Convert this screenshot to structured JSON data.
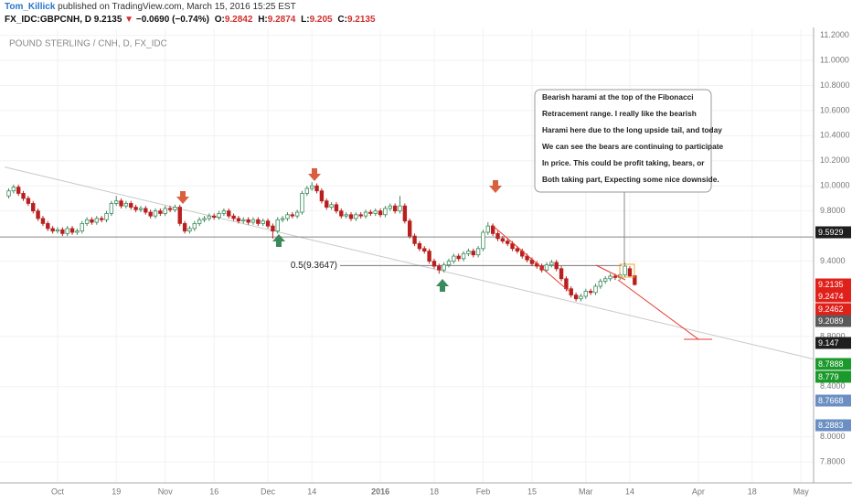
{
  "header": {
    "author": "Tom_Killick",
    "published": "published on TradingView.com, March 15, 2016 15:25 EST",
    "symbol": "FX_IDC:GBPCNH, D",
    "change": "−0.0690 (−0.74%)",
    "ohlc_labels": [
      "O:",
      "H:",
      "L:",
      "C:"
    ]
  },
  "chart_data": {
    "type": "candlestick",
    "title": "POUND STERLING / CNH, D, FX_IDC",
    "up_color": "#3c8a5c",
    "down_color": "#b8201f",
    "grid": true,
    "ylim": [
      7.633,
      11.248
    ],
    "yticks": [
      {
        "value": 11.2,
        "label": "11.2000"
      },
      {
        "value": 11.0,
        "label": "11.0000"
      },
      {
        "value": 10.8,
        "label": "10.8000"
      },
      {
        "value": 10.6,
        "label": "10.6000"
      },
      {
        "value": 10.4,
        "label": "10.4000"
      },
      {
        "value": 10.2,
        "label": "10.2000"
      },
      {
        "value": 10.0,
        "label": "10.0000"
      },
      {
        "value": 9.8,
        "label": "9.8000"
      },
      {
        "value": 9.4,
        "label": "9.4000"
      },
      {
        "value": 8.8,
        "label": "8.8000"
      },
      {
        "value": 8.4,
        "label": "8.4000"
      },
      {
        "value": 8.0,
        "label": "8.0000"
      },
      {
        "value": 7.8,
        "label": "7.8000"
      }
    ],
    "categories": [
      null,
      null,
      null,
      null,
      null,
      null,
      null,
      null,
      null,
      null,
      "Oct",
      null,
      null,
      null,
      null,
      null,
      null,
      null,
      null,
      null,
      null,
      null,
      "19",
      null,
      null,
      null,
      null,
      null,
      null,
      null,
      null,
      null,
      "Nov",
      null,
      null,
      null,
      null,
      null,
      null,
      null,
      null,
      null,
      "16",
      null,
      null,
      null,
      null,
      null,
      null,
      null,
      null,
      null,
      null,
      "Dec",
      null,
      null,
      null,
      null,
      null,
      null,
      null,
      null,
      "14",
      null,
      null,
      null,
      null,
      null,
      null,
      null,
      null,
      null,
      null,
      null,
      null,
      null,
      "2016",
      null,
      null,
      null,
      null,
      null,
      null,
      null,
      null,
      null,
      null,
      "18",
      null,
      null,
      null,
      null,
      null,
      null,
      null,
      null,
      null,
      "Feb",
      null,
      null,
      null,
      null,
      null,
      null,
      null,
      null,
      null,
      "15",
      null,
      null,
      null,
      null,
      null,
      null,
      null,
      null,
      null,
      null,
      "Mar",
      null,
      null,
      null,
      null,
      null,
      null,
      null,
      null,
      "14",
      null,
      null,
      null,
      null,
      null,
      null,
      null,
      null,
      null,
      null,
      null,
      null,
      null,
      "Apr",
      null,
      null,
      null,
      null,
      null,
      null,
      null,
      null,
      null,
      null,
      "18",
      null,
      null,
      null,
      null,
      null,
      null,
      null,
      null,
      null,
      "May",
      null,
      null
    ],
    "open": [
      9.92,
      9.96,
      9.99,
      9.94,
      9.9,
      9.86,
      9.8,
      9.74,
      9.7,
      9.66,
      9.64,
      9.65,
      9.62,
      9.66,
      9.63,
      9.64,
      9.7,
      9.73,
      9.71,
      9.74,
      9.73,
      9.78,
      9.86,
      9.88,
      9.84,
      9.86,
      9.83,
      9.81,
      9.82,
      9.79,
      9.76,
      9.8,
      9.78,
      9.82,
      9.81,
      9.83,
      9.7,
      9.64,
      9.66,
      9.7,
      9.73,
      9.74,
      9.76,
      9.75,
      9.78,
      9.8,
      9.76,
      9.74,
      9.72,
      9.73,
      9.71,
      9.73,
      9.7,
      9.72,
      9.68,
      9.64,
      9.73,
      9.74,
      9.77,
      9.76,
      9.79,
      9.94,
      9.98,
      10.0,
      9.96,
      9.88,
      9.83,
      9.85,
      9.8,
      9.76,
      9.77,
      9.74,
      9.77,
      9.76,
      9.79,
      9.78,
      9.8,
      9.77,
      9.82,
      9.84,
      9.8,
      9.84,
      9.72,
      9.6,
      9.54,
      9.5,
      9.48,
      9.4,
      9.36,
      9.33,
      9.37,
      9.4,
      9.44,
      9.42,
      9.46,
      9.48,
      9.45,
      9.5,
      9.63,
      9.68,
      9.62,
      9.58,
      9.56,
      9.54,
      9.5,
      9.48,
      9.44,
      9.41,
      9.38,
      9.36,
      9.33,
      9.37,
      9.39,
      9.34,
      9.26,
      9.18,
      9.13,
      9.1,
      9.12,
      9.16,
      9.15,
      9.2,
      9.24,
      9.26,
      9.28,
      9.27,
      9.29,
      9.34,
      9.2842,
      null,
      null,
      null,
      null,
      null,
      null,
      null,
      null,
      null,
      null,
      null,
      null,
      null,
      null,
      null,
      null,
      null,
      null,
      null,
      null,
      null,
      null,
      null,
      null,
      null,
      null,
      null,
      null,
      null,
      null,
      null,
      null,
      null,
      null,
      null,
      null
    ],
    "high": [
      9.98,
      10.01,
      10.01,
      9.96,
      9.92,
      9.88,
      9.82,
      9.76,
      9.72,
      9.68,
      9.67,
      9.67,
      9.68,
      9.68,
      9.66,
      9.72,
      9.75,
      9.75,
      9.76,
      9.76,
      9.8,
      9.88,
      9.92,
      9.9,
      9.88,
      9.88,
      9.85,
      9.84,
      9.84,
      9.81,
      9.82,
      9.82,
      9.84,
      9.84,
      9.85,
      9.85,
      9.72,
      9.68,
      9.72,
      9.75,
      9.76,
      9.78,
      9.78,
      9.8,
      9.82,
      9.82,
      9.78,
      9.76,
      9.75,
      9.75,
      9.75,
      9.75,
      9.74,
      9.74,
      9.7,
      9.75,
      9.76,
      9.79,
      9.79,
      9.81,
      9.96,
      10.0,
      10.03,
      10.02,
      9.98,
      9.9,
      9.87,
      9.87,
      9.82,
      9.79,
      9.79,
      9.79,
      9.79,
      9.81,
      9.81,
      9.82,
      9.82,
      9.84,
      9.86,
      9.86,
      9.92,
      9.86,
      9.74,
      9.62,
      9.56,
      9.52,
      9.5,
      9.42,
      9.38,
      9.39,
      9.42,
      9.46,
      9.46,
      9.48,
      9.5,
      9.5,
      9.52,
      9.65,
      9.71,
      9.7,
      9.64,
      9.6,
      9.58,
      9.56,
      9.52,
      9.5,
      9.46,
      9.43,
      9.4,
      9.38,
      9.39,
      9.41,
      9.41,
      9.36,
      9.28,
      9.2,
      9.15,
      9.14,
      9.18,
      9.18,
      9.22,
      9.26,
      9.28,
      9.3,
      9.3,
      9.31,
      9.39,
      9.36,
      9.2874,
      null,
      null,
      null,
      null,
      null,
      null,
      null,
      null,
      null,
      null,
      null,
      null,
      null,
      null,
      null,
      null,
      null,
      null,
      null,
      null,
      null,
      null,
      null,
      null,
      null,
      null,
      null,
      null,
      null,
      null,
      null,
      null,
      null,
      null,
      null,
      null
    ],
    "low": [
      9.9,
      9.94,
      9.92,
      9.88,
      9.84,
      9.78,
      9.72,
      9.68,
      9.64,
      9.62,
      9.62,
      9.6,
      9.6,
      9.61,
      9.61,
      9.62,
      9.68,
      9.69,
      9.69,
      9.71,
      9.71,
      9.76,
      9.84,
      9.82,
      9.82,
      9.81,
      9.79,
      9.79,
      9.77,
      9.74,
      9.74,
      9.76,
      9.76,
      9.79,
      9.79,
      9.68,
      9.62,
      9.62,
      9.64,
      9.68,
      9.71,
      9.72,
      9.73,
      9.73,
      9.76,
      9.74,
      9.72,
      9.7,
      9.7,
      9.69,
      9.69,
      9.68,
      9.68,
      9.66,
      9.58,
      9.62,
      9.71,
      9.72,
      9.74,
      9.74,
      9.77,
      9.92,
      9.96,
      9.94,
      9.86,
      9.81,
      9.81,
      9.78,
      9.74,
      9.74,
      9.72,
      9.72,
      9.74,
      9.74,
      9.76,
      9.76,
      9.75,
      9.75,
      9.8,
      9.78,
      9.78,
      9.7,
      9.58,
      9.52,
      9.48,
      9.46,
      9.38,
      9.34,
      9.3,
      9.31,
      9.35,
      9.38,
      9.4,
      9.4,
      9.44,
      9.43,
      9.43,
      9.48,
      9.61,
      9.6,
      9.56,
      9.54,
      9.52,
      9.48,
      9.46,
      9.42,
      9.39,
      9.36,
      9.34,
      9.31,
      9.31,
      9.35,
      9.32,
      9.24,
      9.16,
      9.11,
      9.08,
      9.08,
      9.1,
      9.13,
      9.13,
      9.18,
      9.22,
      9.24,
      9.25,
      9.25,
      9.27,
      9.27,
      9.205,
      null,
      null,
      null,
      null,
      null,
      null,
      null,
      null,
      null,
      null,
      null,
      null,
      null,
      null,
      null,
      null,
      null,
      null,
      null,
      null,
      null,
      null,
      null,
      null,
      null,
      null,
      null,
      null,
      null,
      null,
      null,
      null,
      null,
      null,
      null,
      null
    ],
    "close": [
      9.96,
      9.99,
      9.94,
      9.9,
      9.86,
      9.8,
      9.74,
      9.7,
      9.66,
      9.64,
      9.65,
      9.62,
      9.66,
      9.63,
      9.64,
      9.7,
      9.73,
      9.71,
      9.74,
      9.73,
      9.78,
      9.86,
      9.88,
      9.84,
      9.86,
      9.83,
      9.81,
      9.82,
      9.79,
      9.76,
      9.8,
      9.78,
      9.82,
      9.81,
      9.83,
      9.7,
      9.64,
      9.66,
      9.7,
      9.73,
      9.74,
      9.76,
      9.75,
      9.78,
      9.8,
      9.76,
      9.74,
      9.72,
      9.73,
      9.71,
      9.73,
      9.7,
      9.72,
      9.68,
      9.64,
      9.73,
      9.74,
      9.77,
      9.76,
      9.79,
      9.94,
      9.98,
      10.0,
      9.96,
      9.88,
      9.83,
      9.85,
      9.8,
      9.76,
      9.77,
      9.74,
      9.77,
      9.76,
      9.79,
      9.78,
      9.8,
      9.77,
      9.82,
      9.84,
      9.8,
      9.84,
      9.72,
      9.6,
      9.54,
      9.5,
      9.48,
      9.4,
      9.36,
      9.33,
      9.37,
      9.4,
      9.44,
      9.42,
      9.46,
      9.48,
      9.45,
      9.5,
      9.63,
      9.68,
      9.62,
      9.58,
      9.56,
      9.54,
      9.5,
      9.48,
      9.44,
      9.41,
      9.38,
      9.36,
      9.33,
      9.37,
      9.39,
      9.34,
      9.26,
      9.18,
      9.13,
      9.1,
      9.12,
      9.16,
      9.15,
      9.2,
      9.24,
      9.26,
      9.28,
      9.27,
      9.29,
      9.36,
      9.2825,
      9.2135,
      null,
      null,
      null,
      null,
      null,
      null,
      null,
      null,
      null,
      null,
      null,
      null,
      null,
      null,
      null,
      null,
      null,
      null,
      null,
      null,
      null,
      null,
      null,
      null,
      null,
      null,
      null,
      null,
      null,
      null,
      null,
      null,
      null,
      null,
      null,
      null
    ],
    "trendline": [
      10.15,
      8.62
    ],
    "fib": {
      "label": "0.5(9.3647)",
      "value": 9.3647
    },
    "price_labels": [
      {
        "value": 9.5929,
        "color": "#1e1e1e"
      },
      {
        "value": 9.2135,
        "color": "#e0201b"
      },
      {
        "value": 9.2474,
        "color": "#e0201b"
      },
      {
        "value": 9.2462,
        "color": "#e0201b"
      },
      {
        "value": 9.2089,
        "color": "#5a5a5a"
      },
      {
        "value": 9.147,
        "color": "#1e1e1e"
      },
      {
        "value": 8.7888,
        "color": "#1a9a2a"
      },
      {
        "value": 8.779,
        "color": "#1a9a2a"
      },
      {
        "value": 8.7668,
        "color": "#6b8fc2"
      },
      {
        "value": 8.2883,
        "color": "#6b8fc2"
      }
    ],
    "callout": [
      "Bearish harami at the top of the Fibonacci",
      "Retracement range. I really like the bearish",
      "Harami here due to the long upside tail, and today",
      "We can see the bears are continuing to participate",
      "In price. This could be profit taking, bears, or",
      "Both taking part, Expecting some nice downside."
    ]
  }
}
